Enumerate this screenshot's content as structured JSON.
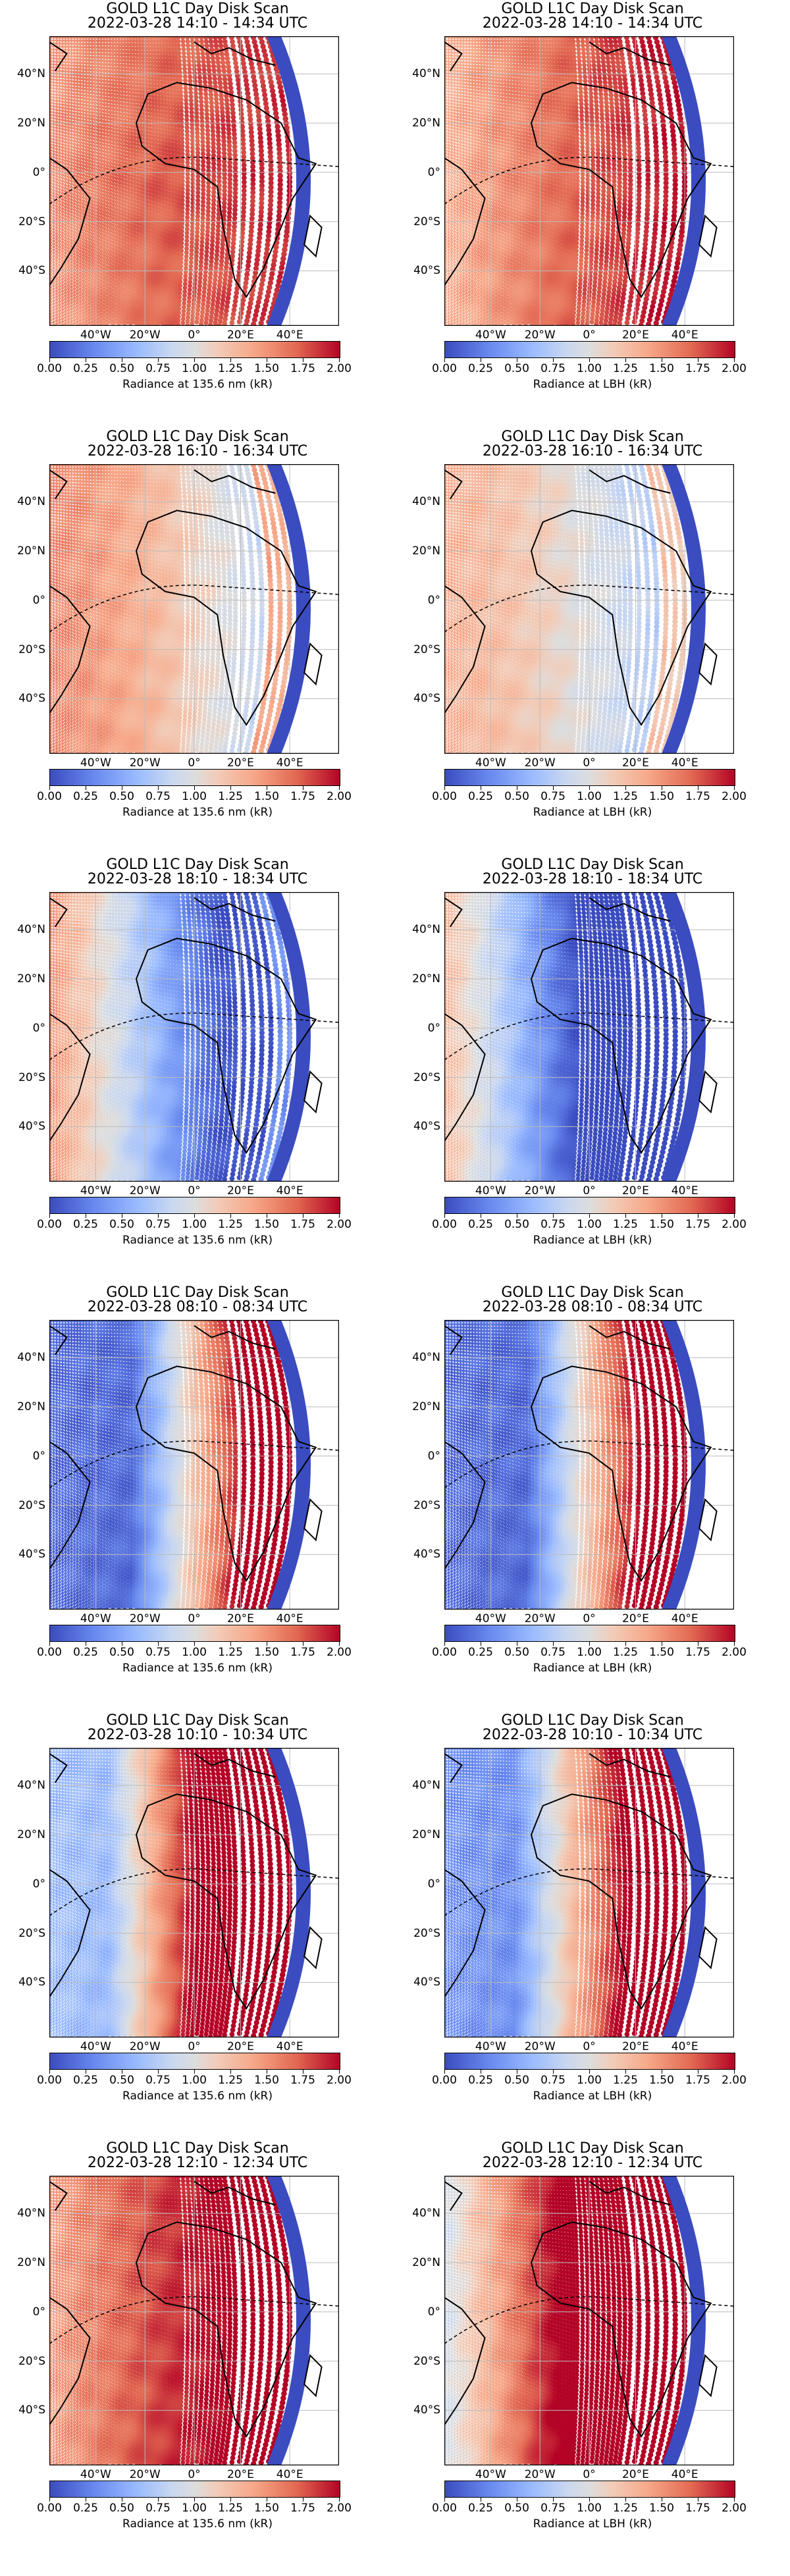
{
  "scale": {
    "ticks": [
      "0.00",
      "0.25",
      "0.50",
      "0.75",
      "1.00",
      "1.25",
      "1.50",
      "1.75",
      "2.00"
    ],
    "colors": {
      "low": "#3b4cc0",
      "mid": "#dddddd",
      "high": "#b40426",
      "disk_edge": "#3b4cc0"
    }
  },
  "axes": {
    "lat_labels": [
      "40°N",
      "20°N",
      "0°",
      "20°S",
      "40°S"
    ],
    "lon_labels": [
      "40°W",
      "20°W",
      "0°",
      "20°E",
      "40°E"
    ]
  },
  "panels": [
    {
      "title": "GOLD L1C Day Disk Scan",
      "time": "2022-03-28 14:10 - 14:34 UTC",
      "colorbar_label": "Radiance at 135.6 nm (kR)",
      "pattern": "red-center"
    },
    {
      "title": "GOLD L1C Day Disk Scan",
      "time": "2022-03-28 14:10 - 14:34 UTC",
      "colorbar_label": "Radiance at LBH (kR)",
      "pattern": "red-light"
    },
    {
      "title": "GOLD L1C Day Disk Scan",
      "time": "2022-03-28 16:10 - 16:34 UTC",
      "colorbar_label": "Radiance at 135.6 nm (kR)",
      "pattern": "red-fade-east"
    },
    {
      "title": "GOLD L1C Day Disk Scan",
      "time": "2022-03-28 16:10 - 16:34 UTC",
      "colorbar_label": "Radiance at LBH (kR)",
      "pattern": "light-fade-east"
    },
    {
      "title": "GOLD L1C Day Disk Scan",
      "time": "2022-03-28 18:10 - 18:34 UTC",
      "colorbar_label": "Radiance at 135.6 nm (kR)",
      "pattern": "blue-east"
    },
    {
      "title": "GOLD L1C Day Disk Scan",
      "time": "2022-03-28 18:10 - 18:34 UTC",
      "colorbar_label": "Radiance at LBH (kR)",
      "pattern": "blue-east-deep"
    },
    {
      "title": "GOLD L1C Day Disk Scan",
      "time": "2022-03-28 08:10 - 08:34 UTC",
      "colorbar_label": "Radiance at 135.6 nm (kR)",
      "pattern": "blue-west-red-east"
    },
    {
      "title": "GOLD L1C Day Disk Scan",
      "time": "2022-03-28 08:10 - 08:34 UTC",
      "colorbar_label": "Radiance at LBH (kR)",
      "pattern": "blue-west-red-east"
    },
    {
      "title": "GOLD L1C Day Disk Scan",
      "time": "2022-03-28 10:10 - 10:34 UTC",
      "colorbar_label": "Radiance at 135.6 nm (kR)",
      "pattern": "light-west-red-east"
    },
    {
      "title": "GOLD L1C Day Disk Scan",
      "time": "2022-03-28 10:10 - 10:34 UTC",
      "colorbar_label": "Radiance at LBH (kR)",
      "pattern": "blue-west-red-east-soft"
    },
    {
      "title": "GOLD L1C Day Disk Scan",
      "time": "2022-03-28 12:10 - 12:34 UTC",
      "colorbar_label": "Radiance at 135.6 nm (kR)",
      "pattern": "red-strong"
    },
    {
      "title": "GOLD L1C Day Disk Scan",
      "time": "2022-03-28 12:10 - 12:34 UTC",
      "colorbar_label": "Radiance at LBH (kR)",
      "pattern": "red-light-west"
    }
  ]
}
